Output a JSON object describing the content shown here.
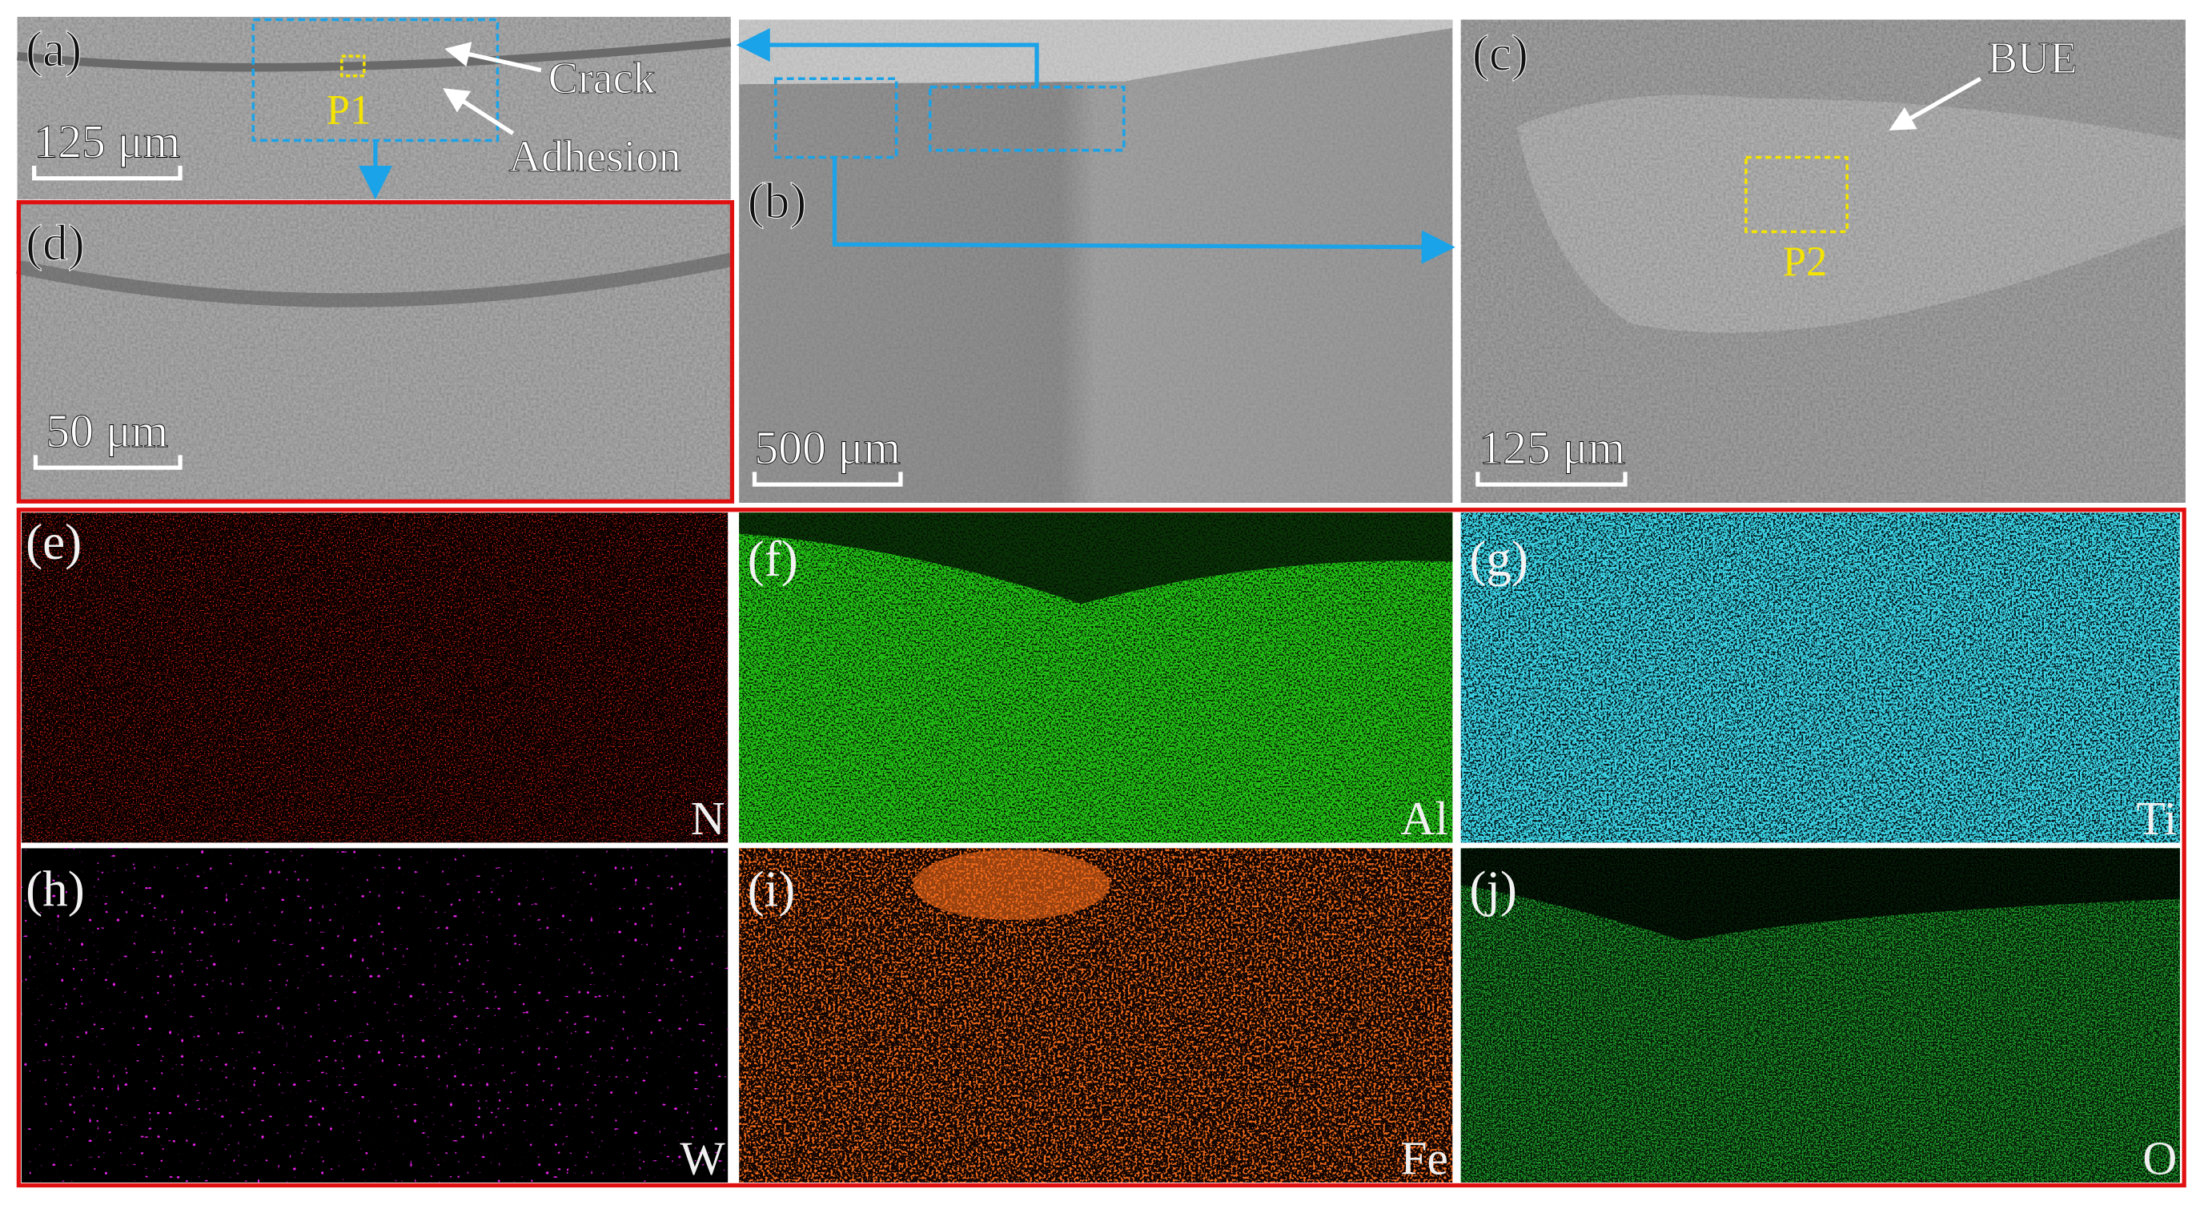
{
  "panels": [
    {
      "label": "(a)",
      "scale_bar": "125 μm"
    },
    {
      "label": "(b)",
      "scale_bar": "500 μm"
    },
    {
      "label": "(c)",
      "scale_bar": "125 μm"
    },
    {
      "label": "(d)",
      "scale_bar": "50 μm"
    },
    {
      "label": "(e)",
      "element": "N"
    },
    {
      "label": "(f)",
      "element": "Al"
    },
    {
      "label": "(g)",
      "element": "Ti"
    },
    {
      "label": "(h)",
      "element": "W"
    },
    {
      "label": "(i)",
      "element": "Fe"
    },
    {
      "label": "(j)",
      "element": "O"
    }
  ],
  "annotations": {
    "crack": "Crack",
    "adhesion": "Adhesion",
    "p1": "P1",
    "p2": "P2",
    "bue": "BUE"
  }
}
